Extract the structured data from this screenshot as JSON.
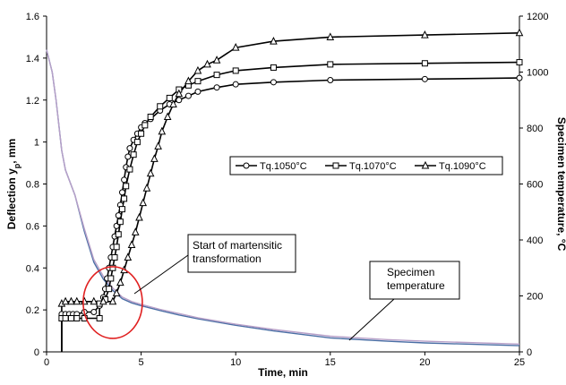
{
  "chart_data": {
    "type": "line",
    "xlabel": "Time, min",
    "ylabel_left": "Deflection y",
    "ylabel_left_subscript": "p",
    "ylabel_left_unit": ", mm",
    "ylabel_right": "Specimen temperature, °C",
    "xlim": [
      0,
      25
    ],
    "ylim_left": [
      0,
      1.6
    ],
    "ylim_right": [
      0,
      1200
    ],
    "x_ticks": [
      0,
      5,
      10,
      15,
      20,
      25
    ],
    "y_left_ticks": [
      0,
      0.2,
      0.4,
      0.6,
      0.8,
      1,
      1.2,
      1.4,
      1.6
    ],
    "y_right_ticks": [
      0,
      200,
      400,
      600,
      800,
      1000,
      1200
    ],
    "grid": false,
    "legend_position": "center-right",
    "series": [
      {
        "name": "Tq.1050°C",
        "marker": "circle",
        "axis": "left",
        "points": [
          [
            0.8,
            0
          ],
          [
            0.8,
            0.18
          ],
          [
            1.0,
            0.18
          ],
          [
            1.2,
            0.18
          ],
          [
            1.4,
            0.18
          ],
          [
            1.6,
            0.18
          ],
          [
            2.0,
            0.19
          ],
          [
            2.5,
            0.19
          ],
          [
            2.8,
            0.22
          ],
          [
            3.0,
            0.26
          ],
          [
            3.1,
            0.3
          ],
          [
            3.2,
            0.35
          ],
          [
            3.3,
            0.4
          ],
          [
            3.4,
            0.45
          ],
          [
            3.5,
            0.5
          ],
          [
            3.6,
            0.55
          ],
          [
            3.7,
            0.6
          ],
          [
            3.8,
            0.65
          ],
          [
            3.9,
            0.7
          ],
          [
            4.0,
            0.76
          ],
          [
            4.1,
            0.82
          ],
          [
            4.2,
            0.88
          ],
          [
            4.3,
            0.93
          ],
          [
            4.4,
            0.97
          ],
          [
            4.6,
            1.01
          ],
          [
            4.8,
            1.04
          ],
          [
            5.0,
            1.07
          ],
          [
            5.2,
            1.09
          ],
          [
            5.5,
            1.11
          ],
          [
            6.0,
            1.15
          ],
          [
            6.5,
            1.18
          ],
          [
            7.0,
            1.2
          ],
          [
            7.5,
            1.22
          ],
          [
            8.0,
            1.24
          ],
          [
            9.0,
            1.26
          ],
          [
            10.0,
            1.275
          ],
          [
            12.0,
            1.285
          ],
          [
            15.0,
            1.295
          ],
          [
            20.0,
            1.3
          ],
          [
            25.0,
            1.305
          ]
        ]
      },
      {
        "name": "Tq.1070°C",
        "marker": "square",
        "axis": "left",
        "points": [
          [
            0.8,
            0
          ],
          [
            0.8,
            0.16
          ],
          [
            1.0,
            0.16
          ],
          [
            1.3,
            0.16
          ],
          [
            1.6,
            0.16
          ],
          [
            2.0,
            0.16
          ],
          [
            2.8,
            0.16
          ],
          [
            2.8,
            0.23
          ],
          [
            3.1,
            0.25
          ],
          [
            3.3,
            0.3
          ],
          [
            3.4,
            0.35
          ],
          [
            3.5,
            0.4
          ],
          [
            3.6,
            0.45
          ],
          [
            3.7,
            0.5
          ],
          [
            3.8,
            0.56
          ],
          [
            3.9,
            0.62
          ],
          [
            4.0,
            0.68
          ],
          [
            4.1,
            0.73
          ],
          [
            4.2,
            0.79
          ],
          [
            4.4,
            0.87
          ],
          [
            4.6,
            0.94
          ],
          [
            4.8,
            1.0
          ],
          [
            5.0,
            1.04
          ],
          [
            5.2,
            1.08
          ],
          [
            5.5,
            1.12
          ],
          [
            6.0,
            1.17
          ],
          [
            6.5,
            1.21
          ],
          [
            7.0,
            1.25
          ],
          [
            7.5,
            1.27
          ],
          [
            8.0,
            1.29
          ],
          [
            9.0,
            1.32
          ],
          [
            10.0,
            1.34
          ],
          [
            12.0,
            1.355
          ],
          [
            15.0,
            1.37
          ],
          [
            20.0,
            1.375
          ],
          [
            25.0,
            1.38
          ]
        ]
      },
      {
        "name": "Tq.1090°C",
        "marker": "triangle",
        "axis": "left",
        "points": [
          [
            0.8,
            0
          ],
          [
            0.8,
            0.23
          ],
          [
            1.0,
            0.24
          ],
          [
            1.3,
            0.24
          ],
          [
            1.6,
            0.24
          ],
          [
            2.0,
            0.24
          ],
          [
            2.5,
            0.24
          ],
          [
            3.0,
            0.24
          ],
          [
            3.5,
            0.24
          ],
          [
            3.7,
            0.28
          ],
          [
            3.9,
            0.33
          ],
          [
            4.1,
            0.39
          ],
          [
            4.3,
            0.45
          ],
          [
            4.5,
            0.51
          ],
          [
            4.7,
            0.57
          ],
          [
            4.9,
            0.64
          ],
          [
            5.1,
            0.71
          ],
          [
            5.3,
            0.78
          ],
          [
            5.5,
            0.85
          ],
          [
            5.7,
            0.92
          ],
          [
            5.9,
            0.98
          ],
          [
            6.1,
            1.05
          ],
          [
            6.4,
            1.12
          ],
          [
            6.7,
            1.18
          ],
          [
            7.0,
            1.23
          ],
          [
            7.5,
            1.29
          ],
          [
            8.0,
            1.34
          ],
          [
            8.5,
            1.37
          ],
          [
            9.0,
            1.39
          ],
          [
            10.0,
            1.45
          ],
          [
            12.0,
            1.48
          ],
          [
            15.0,
            1.5
          ],
          [
            20.0,
            1.51
          ],
          [
            25.0,
            1.52
          ]
        ]
      },
      {
        "name": "",
        "marker": "none",
        "axis": "right",
        "color": "#4a6fa5",
        "points": [
          [
            0,
            1080
          ],
          [
            0.3,
            1000
          ],
          [
            0.5,
            900
          ],
          [
            0.8,
            720
          ],
          [
            1.0,
            650
          ],
          [
            1.5,
            560
          ],
          [
            2.0,
            430
          ],
          [
            2.5,
            320
          ],
          [
            3.0,
            260
          ],
          [
            3.5,
            220
          ],
          [
            4.0,
            190
          ],
          [
            4.5,
            175
          ],
          [
            5.0,
            165
          ],
          [
            6.0,
            148
          ],
          [
            7.0,
            132
          ],
          [
            8.0,
            118
          ],
          [
            10.0,
            95
          ],
          [
            12.0,
            75
          ],
          [
            15.0,
            50
          ],
          [
            18.0,
            38
          ],
          [
            20.0,
            32
          ],
          [
            25.0,
            22
          ]
        ]
      },
      {
        "name": "",
        "marker": "none",
        "axis": "right",
        "color": "#b8a0c8",
        "points": [
          [
            0,
            1080
          ],
          [
            0.3,
            1000
          ],
          [
            0.5,
            900
          ],
          [
            0.8,
            720
          ],
          [
            1.0,
            650
          ],
          [
            1.5,
            560
          ],
          [
            2.0,
            440
          ],
          [
            2.5,
            330
          ],
          [
            3.0,
            270
          ],
          [
            3.5,
            228
          ],
          [
            4.0,
            196
          ],
          [
            4.5,
            180
          ],
          [
            5.0,
            170
          ],
          [
            6.0,
            152
          ],
          [
            7.0,
            137
          ],
          [
            8.0,
            122
          ],
          [
            10.0,
            99
          ],
          [
            12.0,
            80
          ],
          [
            15.0,
            56
          ],
          [
            18.0,
            44
          ],
          [
            20.0,
            38
          ],
          [
            25.0,
            28
          ]
        ]
      }
    ],
    "annotations": [
      {
        "lines": [
          "Start of martensitic",
          "transformation"
        ]
      },
      {
        "lines": [
          "Specimen",
          "temperature"
        ]
      }
    ]
  }
}
